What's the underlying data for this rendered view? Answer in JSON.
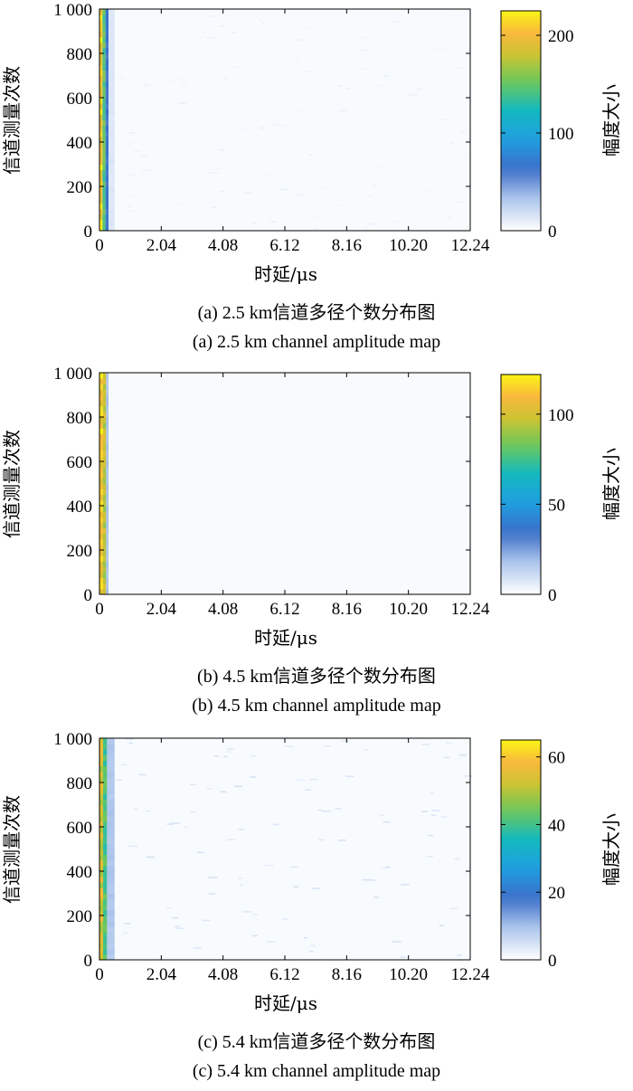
{
  "panels": [
    {
      "caption_cn": "(a) 2.5 km信道多径个数分布图",
      "caption_en": "(a) 2.5 km channel amplitude map",
      "ylabel": "信道测量次数",
      "xlabel": "时延/μs",
      "colorbar_label": "幅度大小",
      "xticks": [
        "0",
        "2.04",
        "4.08",
        "6.12",
        "8.16",
        "10.20",
        "12.24"
      ],
      "yticks": [
        "0",
        "200",
        "400",
        "600",
        "800",
        "1 000"
      ],
      "cticks": [
        "0",
        "100",
        "200"
      ]
    },
    {
      "caption_cn": "(b) 4.5 km信道多径个数分布图",
      "caption_en": "(b) 4.5 km channel amplitude map",
      "ylabel": "信道测量次数",
      "xlabel": "时延/μs",
      "colorbar_label": "幅度大小",
      "xticks": [
        "0",
        "2.04",
        "4.08",
        "6.12",
        "8.16",
        "10.20",
        "12.24"
      ],
      "yticks": [
        "0",
        "200",
        "400",
        "600",
        "800",
        "1 000"
      ],
      "cticks": [
        "0",
        "50",
        "100"
      ]
    },
    {
      "caption_cn": "(c) 5.4 km信道多径个数分布图",
      "caption_en": "(c) 5.4 km channel amplitude map",
      "ylabel": "信道测量次数",
      "xlabel": "时延/μs",
      "colorbar_label": "幅度大小",
      "xticks": [
        "0",
        "2.04",
        "4.08",
        "6.12",
        "8.16",
        "10.20",
        "12.24"
      ],
      "yticks": [
        "0",
        "200",
        "400",
        "600",
        "800",
        "1 000"
      ],
      "cticks": [
        "0",
        "20",
        "40",
        "60"
      ]
    }
  ],
  "chart_data": [
    {
      "type": "heatmap",
      "xlabel": "时延/μs",
      "ylabel": "信道测量次数",
      "colorbar_label": "幅度大小",
      "xlim": [
        0,
        12.24
      ],
      "ylim": [
        0,
        1000
      ],
      "clim": [
        0,
        225
      ],
      "colormap": "parula",
      "grid": false,
      "bands": [
        {
          "x_from": 0,
          "x_to": 0.1,
          "y_from": 0,
          "y_to": 1000,
          "value": 225
        },
        {
          "x_from": 0.1,
          "x_to": 0.2,
          "y_from": 0,
          "y_to": 1000,
          "value": 160
        },
        {
          "x_from": 0.2,
          "x_to": 0.3,
          "y_from": 0,
          "y_to": 1000,
          "value": 70
        },
        {
          "x_from": 0.3,
          "x_to": 0.5,
          "y_from": 0,
          "y_to": 1000,
          "value": 15
        }
      ],
      "speckle_value": 12
    },
    {
      "type": "heatmap",
      "xlabel": "时延/μs",
      "ylabel": "信道测量次数",
      "colorbar_label": "幅度大小",
      "xlim": [
        0,
        12.24
      ],
      "ylim": [
        0,
        1000
      ],
      "clim": [
        0,
        122
      ],
      "colormap": "parula",
      "grid": false,
      "bands": [
        {
          "x_from": 0,
          "x_to": 0.12,
          "y_from": 0,
          "y_to": 1000,
          "value": 122
        },
        {
          "x_from": 0.12,
          "x_to": 0.22,
          "y_from": 0,
          "y_to": 1000,
          "value": 105
        },
        {
          "x_from": 0.22,
          "x_to": 0.3,
          "y_from": 0,
          "y_to": 1000,
          "value": 20
        }
      ],
      "speckle_value": 3
    },
    {
      "type": "heatmap",
      "xlabel": "时延/μs",
      "ylabel": "信道测量次数",
      "colorbar_label": "幅度大小",
      "xlim": [
        0,
        12.24
      ],
      "ylim": [
        0,
        1000
      ],
      "clim": [
        0,
        65
      ],
      "colormap": "parula",
      "grid": false,
      "bands": [
        {
          "x_from": 0,
          "x_to": 0.12,
          "y_from": 0,
          "y_to": 1000,
          "value": 58
        },
        {
          "x_from": 0.12,
          "x_to": 0.25,
          "y_from": 0,
          "y_to": 1000,
          "value": 45
        },
        {
          "x_from": 0.25,
          "x_to": 0.5,
          "y_from": 0,
          "y_to": 1000,
          "value": 10
        }
      ],
      "speckle_value": 8
    }
  ]
}
